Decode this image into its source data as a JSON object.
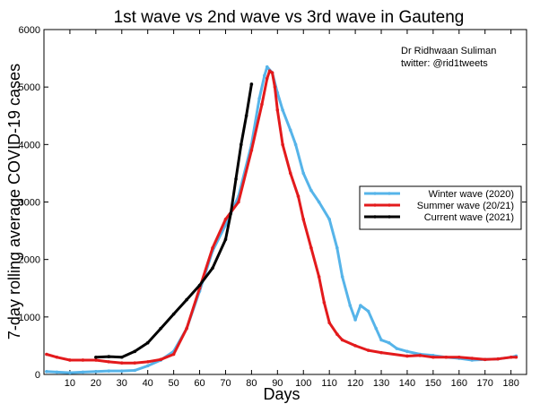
{
  "chart_data": {
    "type": "line",
    "title": "1st wave vs 2nd wave vs 3rd wave in Gauteng",
    "xlabel": "Days",
    "ylabel": "7-day rolling average COVID-19 cases",
    "xlim": [
      0,
      186
    ],
    "ylim": [
      0,
      6000
    ],
    "xticks": [
      "10",
      "20",
      "30",
      "40",
      "50",
      "60",
      "70",
      "80",
      "90",
      "100",
      "110",
      "120",
      "130",
      "140",
      "150",
      "160",
      "170",
      "180"
    ],
    "yticks": [
      "0",
      "1000",
      "2000",
      "3000",
      "4000",
      "5000",
      "6000"
    ],
    "grid": false,
    "legend_position": "right",
    "annotations": [
      "Dr Ridhwaan Suliman",
      "twitter: @rid1tweets"
    ],
    "series": [
      {
        "name": "Winter wave (2020)",
        "color": "#56b4e9",
        "x": [
          1,
          5,
          10,
          15,
          20,
          25,
          30,
          35,
          40,
          45,
          50,
          55,
          60,
          65,
          70,
          75,
          80,
          83,
          85,
          86,
          88,
          90,
          92,
          95,
          97,
          100,
          103,
          106,
          110,
          113,
          115,
          118,
          120,
          122,
          125,
          128,
          130,
          133,
          136,
          140,
          145,
          150,
          155,
          160,
          165,
          170,
          175,
          180,
          182
        ],
        "y": [
          50,
          40,
          30,
          40,
          50,
          60,
          60,
          70,
          150,
          250,
          400,
          800,
          1450,
          2150,
          2600,
          3100,
          4000,
          4800,
          5200,
          5350,
          5250,
          4900,
          4600,
          4250,
          4000,
          3500,
          3200,
          3000,
          2700,
          2200,
          1700,
          1200,
          950,
          1200,
          1100,
          800,
          600,
          550,
          450,
          400,
          350,
          330,
          300,
          280,
          250,
          260,
          270,
          300,
          320
        ]
      },
      {
        "name": "Summer wave (20/21)",
        "color": "#e31a1c",
        "x": [
          1,
          5,
          10,
          15,
          20,
          25,
          30,
          35,
          40,
          45,
          50,
          55,
          60,
          65,
          70,
          75,
          80,
          84,
          86,
          87,
          88,
          89,
          90,
          92,
          95,
          98,
          100,
          103,
          106,
          108,
          110,
          113,
          115,
          120,
          125,
          130,
          140,
          145,
          150,
          155,
          160,
          165,
          170,
          175,
          180,
          182
        ],
        "y": [
          350,
          300,
          250,
          250,
          250,
          220,
          200,
          200,
          220,
          260,
          350,
          800,
          1500,
          2200,
          2700,
          3000,
          3900,
          4700,
          5150,
          5280,
          5250,
          5000,
          4600,
          4000,
          3500,
          3100,
          2700,
          2200,
          1700,
          1250,
          900,
          700,
          600,
          500,
          420,
          380,
          320,
          330,
          300,
          300,
          300,
          280,
          260,
          270,
          300,
          300
        ]
      },
      {
        "name": "Current wave (2021)",
        "color": "#000000",
        "x": [
          20,
          25,
          30,
          35,
          40,
          45,
          50,
          55,
          60,
          65,
          70,
          72,
          74,
          76,
          78,
          80
        ],
        "y": [
          300,
          310,
          300,
          400,
          550,
          800,
          1050,
          1300,
          1550,
          1850,
          2350,
          2800,
          3400,
          4000,
          4500,
          5050
        ]
      }
    ]
  }
}
